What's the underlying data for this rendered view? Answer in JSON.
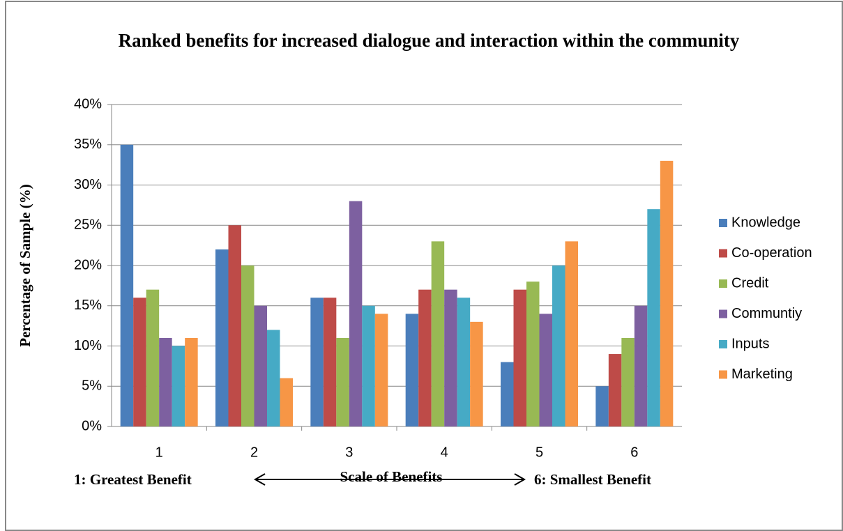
{
  "chart_data": {
    "type": "bar",
    "title": "Ranked benefits for increased dialogue and interaction within the community",
    "x_label": "Scale of Benefits",
    "y_label": "Percentage of Sample (%)",
    "annotations": [
      "1: Greatest Benefit",
      "6: Smallest Benefit"
    ],
    "categories": [
      "1",
      "2",
      "3",
      "4",
      "5",
      "6"
    ],
    "series": [
      {
        "name": "Knowledge",
        "color": "#4a7ebb",
        "values": [
          35,
          22,
          16,
          14,
          8,
          5
        ]
      },
      {
        "name": "Co-operation",
        "color": "#be4b48",
        "values": [
          16,
          25,
          16,
          17,
          17,
          9
        ]
      },
      {
        "name": "Credit",
        "color": "#98b954",
        "values": [
          17,
          20,
          11,
          23,
          18,
          11
        ]
      },
      {
        "name": "Communtiy",
        "color": "#7d60a0",
        "values": [
          11,
          15,
          28,
          17,
          14,
          15
        ]
      },
      {
        "name": "Inputs",
        "color": "#46aac5",
        "values": [
          10,
          12,
          15,
          16,
          20,
          27
        ]
      },
      {
        "name": "Marketing",
        "color": "#f79646",
        "values": [
          11,
          6,
          14,
          13,
          23,
          33
        ]
      }
    ],
    "ylim": [
      0,
      40
    ],
    "yticks": [
      {
        "value": 0,
        "label": "0%"
      },
      {
        "value": 5,
        "label": "5%"
      },
      {
        "value": 10,
        "label": "10%"
      },
      {
        "value": 15,
        "label": "15%"
      },
      {
        "value": 20,
        "label": "20%"
      },
      {
        "value": 25,
        "label": "25%"
      },
      {
        "value": 30,
        "label": "30%"
      },
      {
        "value": 35,
        "label": "35%"
      },
      {
        "value": 40,
        "label": "40%"
      }
    ],
    "grid": true,
    "legend": "right"
  }
}
